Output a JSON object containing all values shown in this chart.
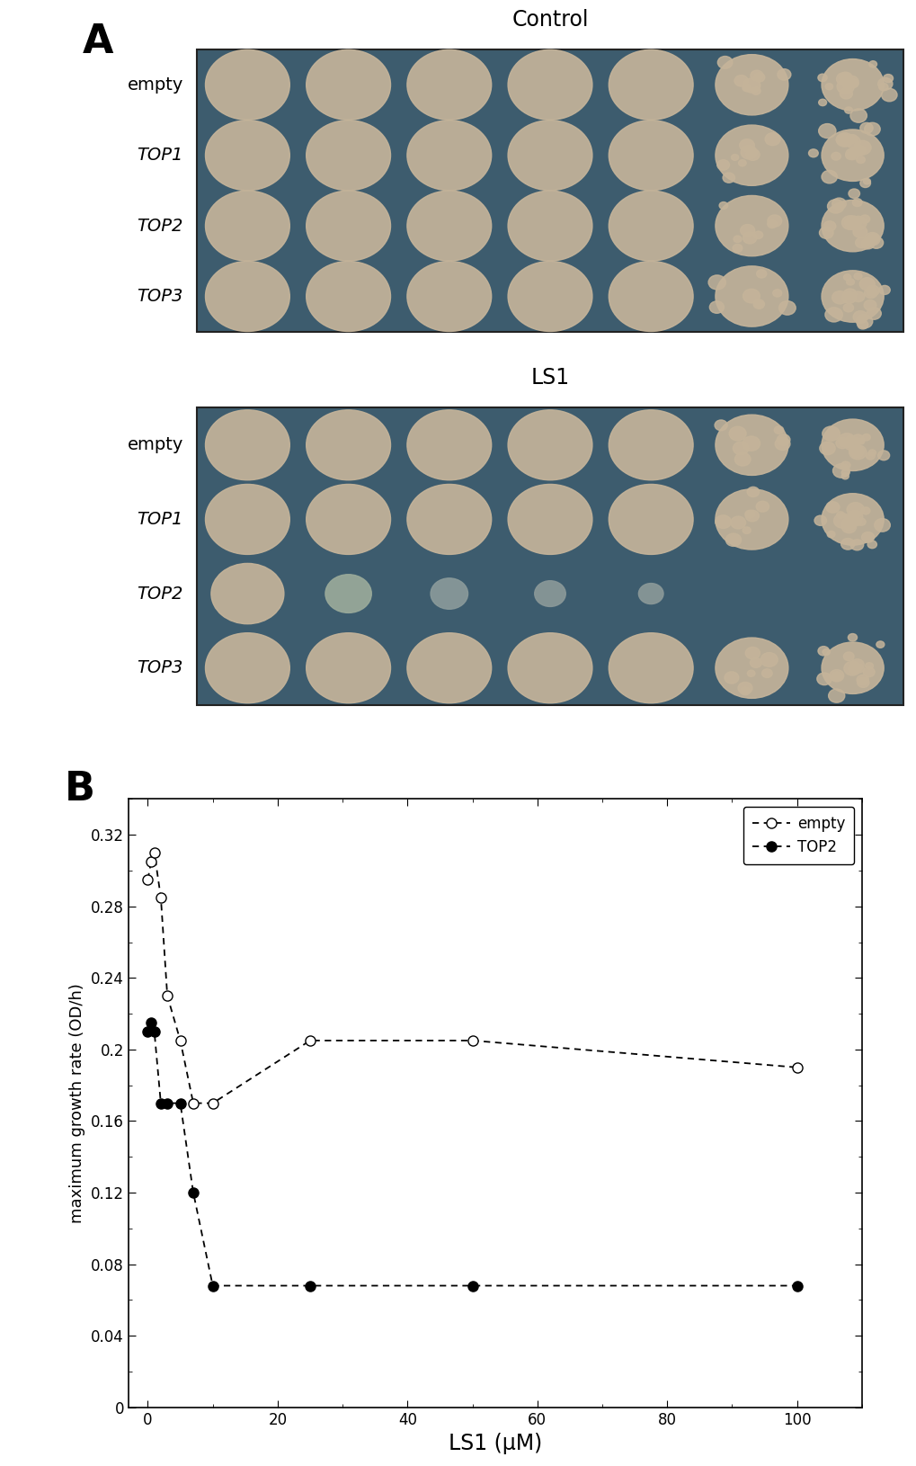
{
  "panel_A_label": "A",
  "panel_B_label": "B",
  "control_label": "Control",
  "ls1_label": "LS1",
  "row_labels": [
    "empty",
    "TOP1",
    "TOP2",
    "TOP3"
  ],
  "empty_x_full": [
    0.0,
    0.5,
    1.0,
    2.0,
    3.0,
    5.0,
    7.0,
    10.0,
    25.0,
    50.0,
    100.0
  ],
  "empty_y_full": [
    0.295,
    0.305,
    0.31,
    0.285,
    0.23,
    0.205,
    0.17,
    0.17,
    0.205,
    0.205,
    0.19
  ],
  "top2_x_full": [
    0.0,
    0.5,
    1.0,
    2.0,
    3.0,
    5.0,
    7.0,
    10.0,
    25.0,
    50.0,
    100.0
  ],
  "top2_y_full": [
    0.21,
    0.215,
    0.21,
    0.17,
    0.17,
    0.17,
    0.12,
    0.068,
    0.068,
    0.068,
    0.068
  ],
  "xlabel": "LS1 (μM)",
  "ylabel": "maximum growth rate (OD/h)",
  "ylim": [
    0,
    0.34
  ],
  "xlim": [
    -3,
    110
  ],
  "yticks": [
    0,
    0.04,
    0.08,
    0.12,
    0.16,
    0.2,
    0.24,
    0.28,
    0.32
  ],
  "xticks": [
    0,
    20,
    40,
    60,
    80,
    100
  ],
  "legend_empty": "empty",
  "legend_top2": "TOP2",
  "bg_color": "#ffffff",
  "plate_bg_color": "#3d5c6e",
  "plate_bg_color2": "#4a6575",
  "colony_beige": "#c5b49a",
  "colony_dark": "#8a9090"
}
